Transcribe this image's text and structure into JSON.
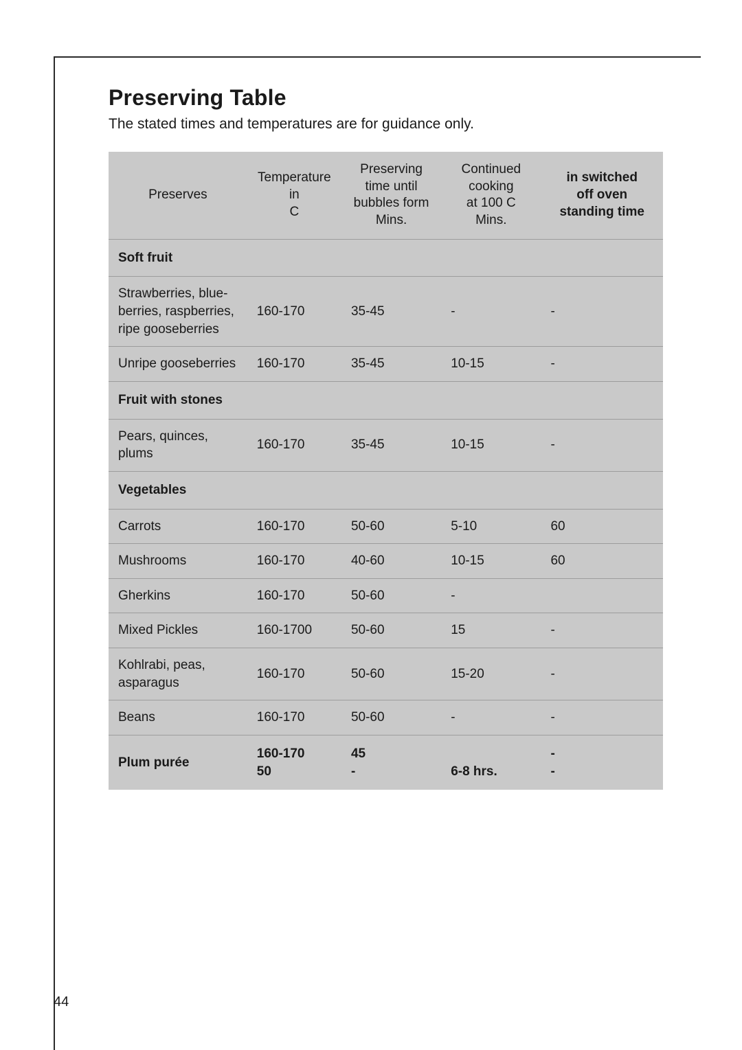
{
  "page": {
    "title": "Preserving Table",
    "subtitle": "The stated times and temperatures are for guidance only.",
    "number": "44"
  },
  "table": {
    "type": "table",
    "background_color": "#c9c9c9",
    "border_color": "#9c9c9c",
    "text_color": "#1a1a1a",
    "font_size_pt": 14,
    "columns": [
      {
        "key": "preserves",
        "label": "Preserves",
        "width_pct": 25,
        "bold": false,
        "align": "center"
      },
      {
        "key": "temp",
        "label": "Temperature\nin\nC",
        "width_pct": 17,
        "bold": false,
        "align": "center"
      },
      {
        "key": "time",
        "label": "Preserving\ntime until\nbubbles form\nMins.",
        "width_pct": 18,
        "bold": false,
        "align": "center"
      },
      {
        "key": "cont",
        "label": "Continued\ncooking\nat 100 C\nMins.",
        "width_pct": 18,
        "bold": false,
        "align": "center"
      },
      {
        "key": "stand",
        "label": "in switched\noff oven\nstanding time",
        "width_pct": 22,
        "bold": true,
        "align": "center"
      }
    ],
    "rows": [
      {
        "section": true,
        "cells": [
          "Soft fruit",
          "",
          "",
          "",
          ""
        ]
      },
      {
        "section": false,
        "cells": [
          "Strawberries, blue-\nberries, raspberries,\nripe gooseberries",
          "160-170",
          "35-45",
          "-",
          "-"
        ]
      },
      {
        "section": false,
        "cells": [
          "Unripe gooseberries",
          "160-170",
          "35-45",
          "10-15",
          "-"
        ]
      },
      {
        "section": true,
        "cells": [
          "Fruit with stones",
          "",
          "",
          "",
          ""
        ]
      },
      {
        "section": false,
        "cells": [
          "Pears, quinces,\nplums",
          "160-170",
          "35-45",
          "10-15",
          "-"
        ]
      },
      {
        "section": true,
        "cells": [
          "Vegetables",
          "",
          "",
          "",
          ""
        ]
      },
      {
        "section": false,
        "cells": [
          "Carrots",
          "160-170",
          "50-60",
          "5-10",
          "60"
        ]
      },
      {
        "section": false,
        "cells": [
          "Mushrooms",
          "160-170",
          "40-60",
          "10-15",
          "60"
        ]
      },
      {
        "section": false,
        "cells": [
          "Gherkins",
          "160-170",
          "50-60",
          "-",
          ""
        ]
      },
      {
        "section": false,
        "cells": [
          "Mixed Pickles",
          "160-1700",
          "50-60",
          "15",
          "-"
        ]
      },
      {
        "section": false,
        "cells": [
          "Kohlrabi, peas,\nasparagus",
          "160-170",
          "50-60",
          "15-20",
          "-"
        ]
      },
      {
        "section": false,
        "cells": [
          "Beans",
          "160-170",
          "50-60",
          "-",
          "-"
        ]
      },
      {
        "section": true,
        "last": true,
        "cells": [
          "Plum purée",
          "160-170\n50",
          "45\n-",
          "\n6-8 hrs.",
          "-\n-"
        ]
      }
    ]
  }
}
